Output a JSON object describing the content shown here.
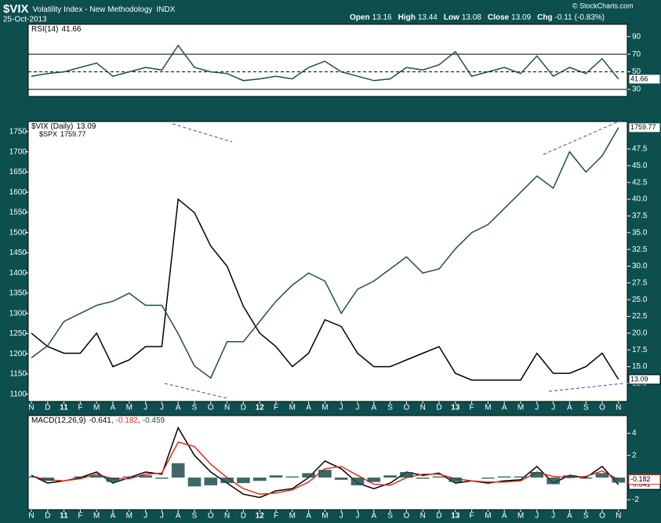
{
  "header": {
    "symbol": "$VIX",
    "name": "Volatility Index - New Methodology",
    "exchange": "INDX",
    "date": "25-Oct-2013",
    "credit": "© StockCharts.com",
    "quote": [
      {
        "label": "Open",
        "value": 13.16
      },
      {
        "label": "High",
        "value": 13.44
      },
      {
        "label": "Low",
        "value": 13.08
      },
      {
        "label": "Close",
        "value": 13.09
      },
      {
        "label": "Chg",
        "value": -0.11
      }
    ],
    "chg_pct": "(-0.83%)"
  },
  "chart_data": [
    {
      "type": "line",
      "ylim": [
        22,
        104
      ],
      "yticks": [
        30,
        50,
        70,
        90
      ],
      "levels": [
        70,
        50,
        30
      ],
      "series": [
        {
          "name": "RSI(14)",
          "color": "#1f4e4e",
          "last": 41.66,
          "values": [
            45,
            48,
            50,
            55,
            60,
            45,
            50,
            55,
            52,
            80,
            55,
            50,
            48,
            40,
            42,
            45,
            42,
            55,
            62,
            50,
            45,
            40,
            42,
            55,
            52,
            58,
            73,
            45,
            50,
            55,
            48,
            68,
            45,
            55,
            48,
            65,
            41.66
          ]
        }
      ]
    },
    {
      "type": "line",
      "ylim": [
        1082,
        1775
      ],
      "yticks": [
        1100,
        1150,
        1200,
        1250,
        1300,
        1350,
        1400,
        1450,
        1500,
        1550,
        1600,
        1650,
        1700,
        1750
      ],
      "y2lim": [
        9.8,
        51.6
      ],
      "y2ticks": [
        12.5,
        {
          "value": 15,
          "label": "15.0"
        },
        17.5,
        {
          "value": 20,
          "label": "20.0"
        },
        22.5,
        {
          "value": 25,
          "label": "25.0"
        },
        27.5,
        {
          "value": 30,
          "label": "30.0"
        },
        32.5,
        {
          "value": 35,
          "label": "35.0"
        },
        37.5,
        {
          "value": 40,
          "label": "40.0"
        },
        42.5,
        {
          "value": 45,
          "label": "45.0"
        },
        47.5
      ],
      "categories": [
        "N",
        "D",
        "11",
        "F",
        "M",
        "A",
        "M",
        "J",
        "J",
        "A",
        "S",
        "O",
        "N",
        "D",
        "12",
        "F",
        "M",
        "A",
        "M",
        "J",
        "J",
        "A",
        "S",
        "O",
        "N",
        "D",
        "13",
        "F",
        "M",
        "A",
        "M",
        "J",
        "J",
        "A",
        "S",
        "O",
        "N"
      ],
      "series": [
        {
          "name": "$VIX (Daily)",
          "color": "#000000",
          "axis": "y2",
          "last": 13.09,
          "values": [
            20,
            18,
            17,
            17,
            20,
            15,
            16,
            18,
            18,
            40,
            38,
            33,
            30,
            24,
            20,
            18,
            15,
            17,
            22,
            21,
            17,
            15,
            15,
            16,
            17,
            18,
            14,
            13,
            13,
            13,
            13,
            17,
            14,
            14,
            15,
            17,
            13.09
          ]
        },
        {
          "name": "$SPX",
          "color": "#1f4e4e",
          "last": 1759.77,
          "values": [
            1190,
            1220,
            1280,
            1300,
            1320,
            1330,
            1350,
            1320,
            1320,
            1250,
            1170,
            1140,
            1230,
            1230,
            1280,
            1330,
            1370,
            1400,
            1380,
            1300,
            1360,
            1380,
            1410,
            1440,
            1400,
            1410,
            1460,
            1500,
            1520,
            1560,
            1600,
            1640,
            1610,
            1700,
            1650,
            1690,
            1759.77
          ]
        }
      ]
    },
    {
      "type": "line",
      "ylim": [
        -2.9,
        5.6
      ],
      "yticks": [
        -2,
        2,
        4
      ],
      "categories": [
        "N",
        "D",
        "11",
        "F",
        "M",
        "A",
        "M",
        "J",
        "J",
        "A",
        "S",
        "O",
        "N",
        "D",
        "12",
        "F",
        "M",
        "A",
        "M",
        "J",
        "J",
        "A",
        "S",
        "O",
        "N",
        "D",
        "13",
        "F",
        "M",
        "A",
        "M",
        "J",
        "J",
        "A",
        "S",
        "O",
        "N"
      ],
      "series": [
        {
          "name": "MACD(12,26,9)",
          "color": "#000000",
          "last": -0.641,
          "values": [
            0.2,
            -0.5,
            -0.3,
            0,
            0.5,
            -0.5,
            0,
            0.5,
            0.3,
            4.5,
            2,
            0.5,
            -0.5,
            -1.5,
            -1.8,
            -1.2,
            -1,
            0,
            1.5,
            0.8,
            -0.5,
            -1,
            -0.5,
            0.5,
            0.2,
            0.4,
            -0.5,
            -0.3,
            -0.5,
            -0.3,
            -0.2,
            1,
            -0.5,
            0.2,
            0,
            1,
            -0.641
          ]
        },
        {
          "color": "#e0301e",
          "last": -0.182,
          "values": [
            0.1,
            -0.2,
            -0.3,
            -0.1,
            0.3,
            -0.1,
            -0.1,
            0.3,
            0.4,
            3.2,
            2.8,
            1.2,
            0,
            -1,
            -1.5,
            -1.4,
            -1.1,
            -0.4,
            0.8,
            1,
            0.2,
            -0.6,
            -0.7,
            0,
            0.3,
            0.3,
            -0.1,
            -0.3,
            -0.4,
            -0.4,
            -0.3,
            0.5,
            0.1,
            0,
            0.1,
            0.6,
            -0.182
          ]
        },
        {
          "type": "histogram",
          "color": "#1f4e4e",
          "last": -0.459,
          "values": [
            0.1,
            -0.3,
            0,
            0.1,
            0.2,
            -0.4,
            0.1,
            0.2,
            -0.1,
            1.3,
            -0.8,
            -0.7,
            -0.5,
            -0.5,
            -0.3,
            0.2,
            0.1,
            0.4,
            0.7,
            -0.2,
            -0.7,
            -0.4,
            0.2,
            0.5,
            -0.1,
            0.1,
            -0.4,
            0,
            -0.1,
            0.1,
            0.1,
            0.5,
            -0.6,
            0.2,
            -0.1,
            0.4,
            -0.459
          ]
        }
      ]
    }
  ]
}
